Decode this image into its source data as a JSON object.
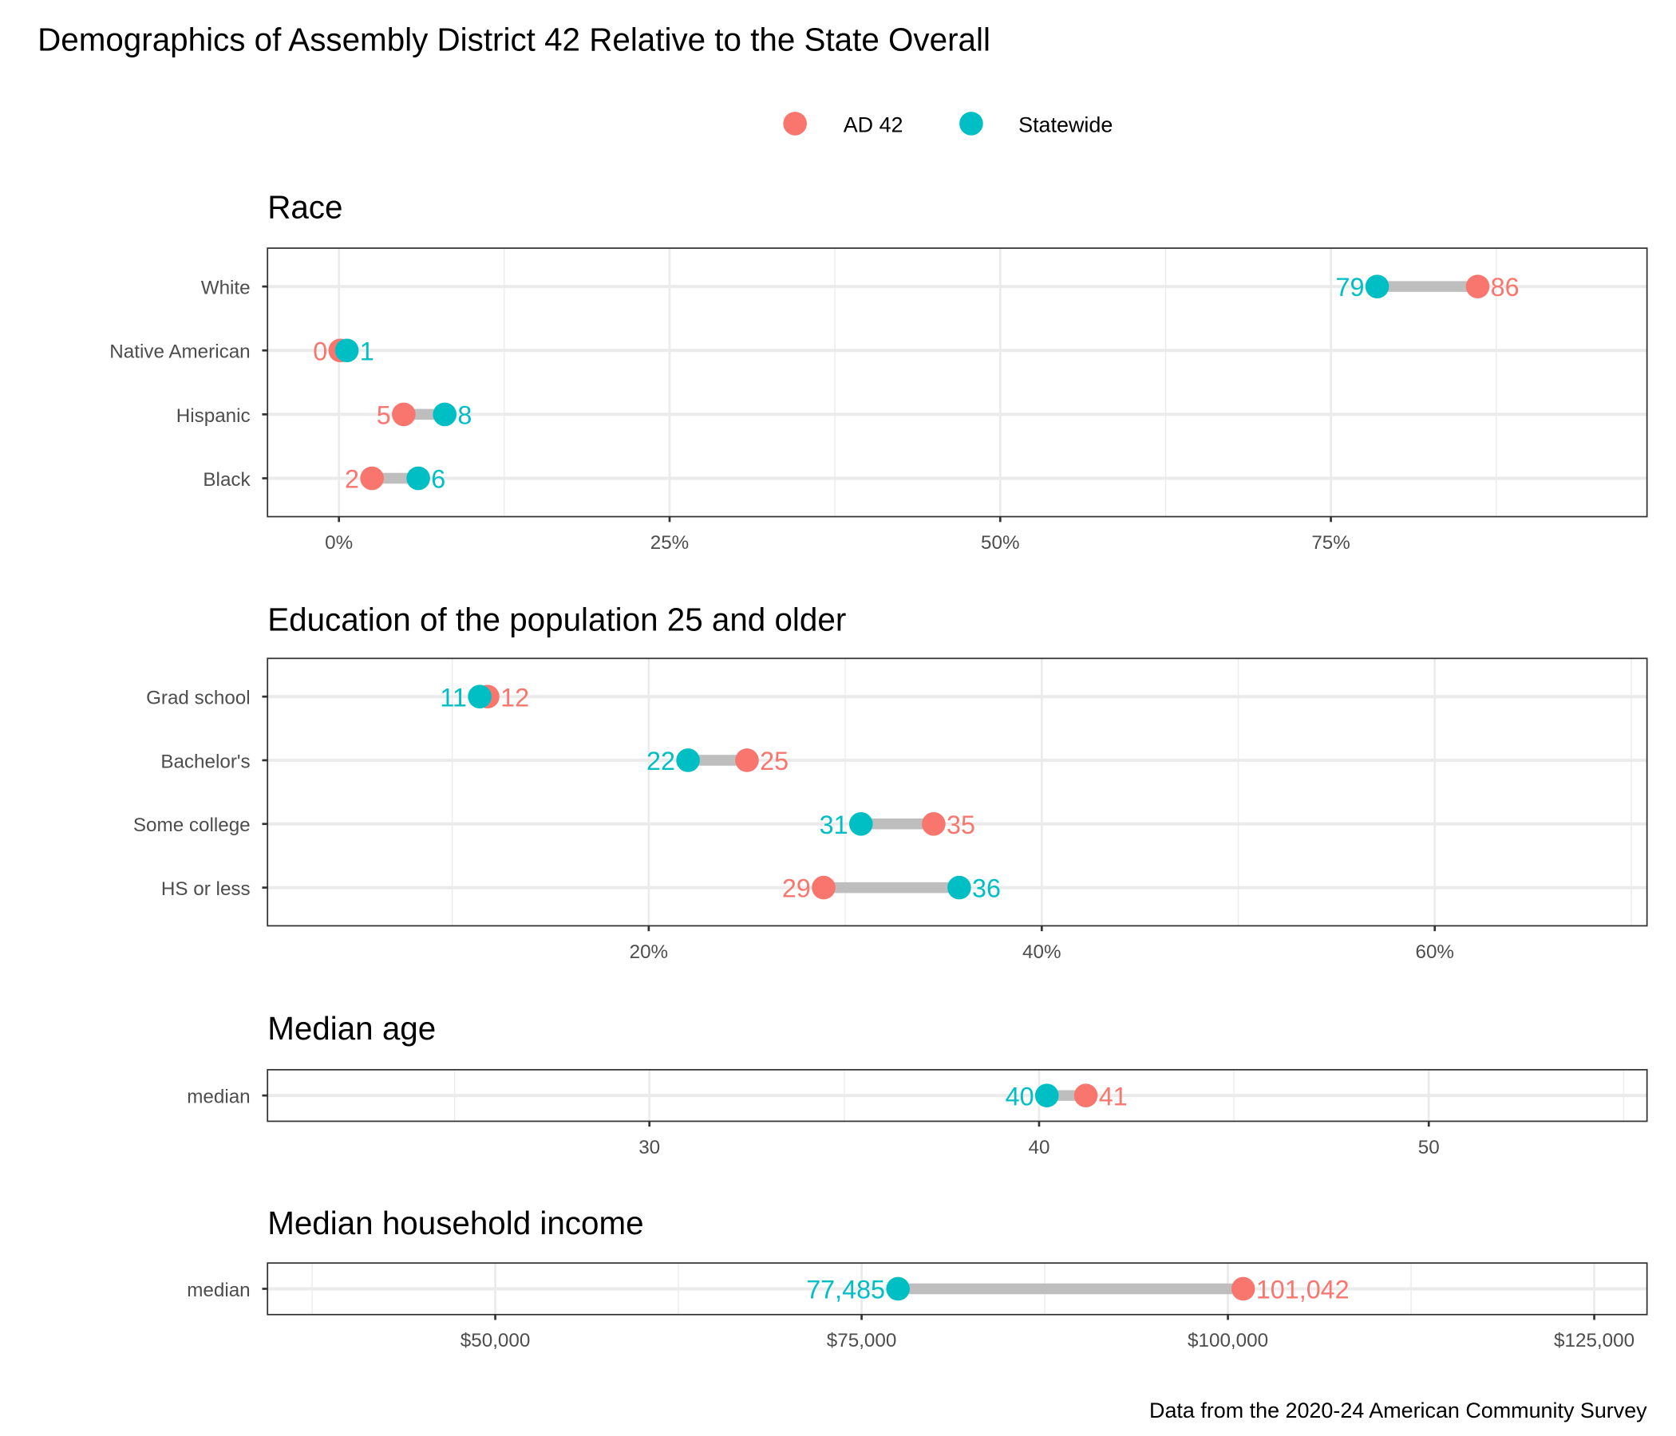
{
  "title": "Demographics of Assembly District 42 Relative to the State Overall",
  "caption": "Data from the 2020-24 American Community Survey",
  "legend": {
    "position": "top",
    "items": [
      {
        "label": "AD 42",
        "color": "#F8766D"
      },
      {
        "label": "Statewide",
        "color": "#00BFC4"
      }
    ]
  },
  "colors": {
    "ad": "#F8766D",
    "state": "#00BFC4",
    "segment": "#BEBEBE",
    "grid": "#EBEBEB"
  },
  "chart_data": [
    {
      "type": "dumbbell",
      "title": "Race",
      "xlim": [
        -5.4,
        98.9
      ],
      "major_ticks": [
        0,
        25,
        50,
        75
      ],
      "tick_labels": [
        "0%",
        "25%",
        "50%",
        "75%"
      ],
      "minor_ticks": [
        12.5,
        37.5,
        62.5,
        87.5
      ],
      "grid": true,
      "categories": [
        "White",
        "Native American",
        "Hispanic",
        "Black"
      ],
      "series": [
        {
          "name": "AD 42",
          "values": [
            86.1,
            0.1,
            4.9,
            2.5
          ],
          "labels": [
            "86",
            "0",
            "5",
            "2"
          ]
        },
        {
          "name": "Statewide",
          "values": [
            78.5,
            0.6,
            8.0,
            6.0
          ],
          "labels": [
            "79",
            "1",
            "8",
            "6"
          ]
        }
      ]
    },
    {
      "type": "dumbbell",
      "title": "Education of the population 25 and older",
      "xlim": [
        0.6,
        70.8
      ],
      "major_ticks": [
        20,
        40,
        60
      ],
      "tick_labels": [
        "20%",
        "40%",
        "60%"
      ],
      "minor_ticks": [
        10,
        30,
        50,
        70
      ],
      "grid": true,
      "categories": [
        "Grad school",
        "Bachelor's",
        "Some college",
        "HS or less"
      ],
      "series": [
        {
          "name": "AD 42",
          "values": [
            11.8,
            25.0,
            34.5,
            28.9
          ],
          "labels": [
            "12",
            "25",
            "35",
            "29"
          ]
        },
        {
          "name": "Statewide",
          "values": [
            11.4,
            22.0,
            30.8,
            35.8
          ],
          "labels": [
            "11",
            "22",
            "31",
            "36"
          ]
        }
      ]
    },
    {
      "type": "dumbbell",
      "title": "Median age",
      "xlim": [
        20.2,
        55.6
      ],
      "major_ticks": [
        30,
        40,
        50
      ],
      "tick_labels": [
        "30",
        "40",
        "50"
      ],
      "minor_ticks": [
        25,
        35,
        45,
        55
      ],
      "grid": true,
      "categories": [
        "median"
      ],
      "series": [
        {
          "name": "AD 42",
          "values": [
            41.2
          ],
          "labels": [
            "41"
          ]
        },
        {
          "name": "Statewide",
          "values": [
            40.2
          ],
          "labels": [
            "40"
          ]
        }
      ]
    },
    {
      "type": "dumbbell",
      "title": "Median household income",
      "xlim": [
        34457,
        128600
      ],
      "major_ticks": [
        50000,
        75000,
        100000,
        125000
      ],
      "tick_labels": [
        "$50,000",
        "$75,000",
        "$100,000",
        "$125,000"
      ],
      "minor_ticks": [
        37500,
        62500,
        87500,
        112500
      ],
      "grid": true,
      "categories": [
        "median"
      ],
      "series": [
        {
          "name": "AD 42",
          "values": [
            101042
          ],
          "labels": [
            "101,042"
          ]
        },
        {
          "name": "Statewide",
          "values": [
            77485
          ],
          "labels": [
            "77,485"
          ]
        }
      ]
    }
  ]
}
